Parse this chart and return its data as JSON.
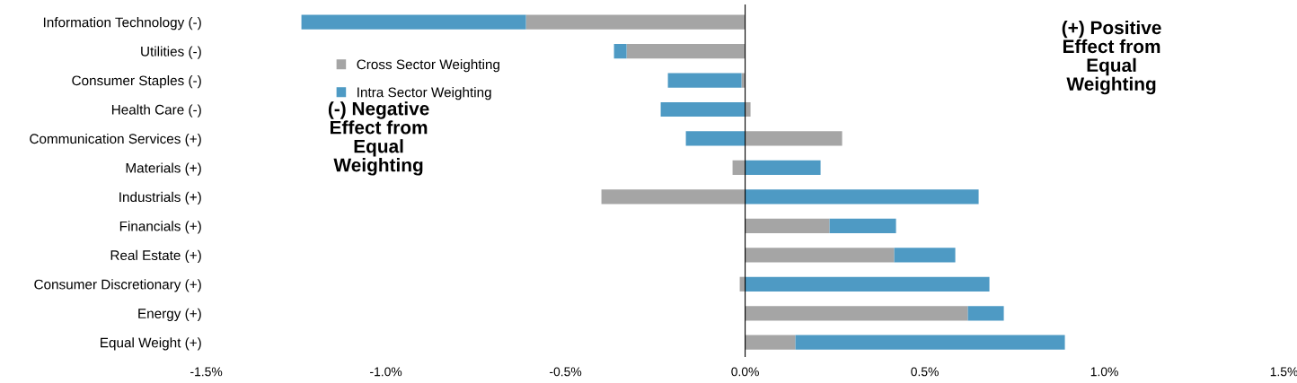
{
  "chart_data": {
    "type": "bar",
    "orientation": "horizontal",
    "stacked": true,
    "categories": [
      "Information Technology (-)",
      "Utilities (-)",
      "Consumer Staples (-)",
      "Health Care (-)",
      "Communication Services (+)",
      "Materials (+)",
      "Industrials (+)",
      "Financials (+)",
      "Real Estate (+)",
      "Consumer Discretionary (+)",
      "Energy (+)",
      "Equal Weight (+)"
    ],
    "series": [
      {
        "name": "Cross Sector Weighting",
        "color": "#a5a5a5",
        "values": [
          -0.61,
          -0.33,
          -0.01,
          0.015,
          0.27,
          -0.035,
          -0.4,
          0.235,
          0.415,
          -0.015,
          0.62,
          0.14
        ]
      },
      {
        "name": "Intra Sector Weighting",
        "color": "#4e9ac4",
        "values": [
          -0.625,
          -0.035,
          -0.205,
          -0.235,
          -0.165,
          0.21,
          0.65,
          0.185,
          0.17,
          0.68,
          0.1,
          0.75
        ]
      }
    ],
    "xlim": [
      -1.5,
      1.5
    ],
    "xticks": [
      {
        "value": -1.5,
        "label": "-1.5%"
      },
      {
        "value": -1.0,
        "label": "-1.0%"
      },
      {
        "value": -0.5,
        "label": "-0.5%"
      },
      {
        "value": 0,
        "label": "0.0%"
      },
      {
        "value": 0.5,
        "label": "0.5%"
      },
      {
        "value": 1.0,
        "label": "1.0%"
      },
      {
        "value": 1.5,
        "label": "1.5%"
      }
    ],
    "ref_lines": [
      {
        "axis": "x",
        "value": 0,
        "color": "#000000"
      }
    ],
    "annotations": [
      "(-) Negative\nEffect from\nEqual\nWeighting",
      "(+) Positive\nEffect from\nEqual\nWeighting"
    ],
    "legend": "top left",
    "grid": false
  }
}
